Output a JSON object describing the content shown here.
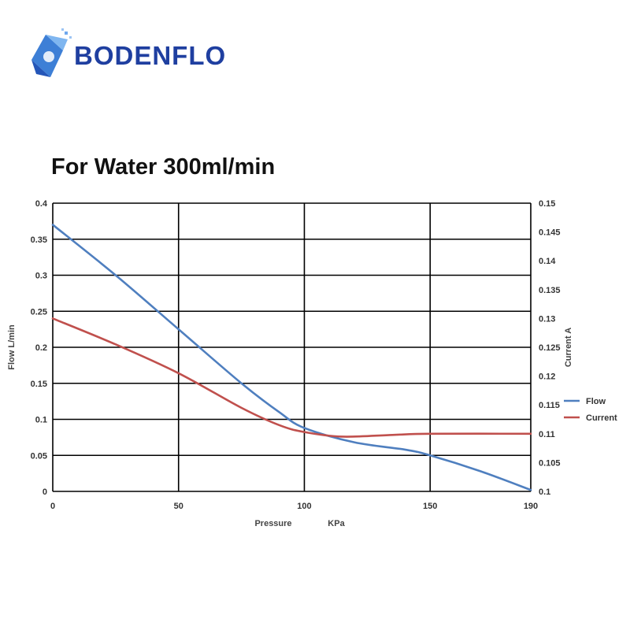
{
  "brand": {
    "logo_text": "BODENFLO"
  },
  "title": "For Water 300ml/min",
  "chart_data": {
    "type": "line",
    "x_ticks": [
      0,
      50,
      100,
      150,
      190
    ],
    "xlabel_left": "Pressure",
    "xlabel_right": "KPa",
    "ylabel": "Flow  L/min",
    "y2label": "Current  A",
    "ylim": [
      0,
      0.4
    ],
    "y_ticks": [
      "0",
      "0.05",
      "0.1",
      "0.15",
      "0.2",
      "0.25",
      "0.3",
      "0.35",
      "0.4"
    ],
    "y2lim": [
      0.1,
      0.15
    ],
    "y2_ticks": [
      "0.1",
      "0.105",
      "0.11",
      "0.115",
      "0.12",
      "0.125",
      "0.13",
      "0.135",
      "0.14",
      "0.145",
      "0.15"
    ],
    "grid": true,
    "legend_position": "right",
    "series": [
      {
        "name": "Flow",
        "axis": "left",
        "color": "#4f7fbf",
        "points": [
          [
            0,
            0.37
          ],
          [
            25,
            0.3
          ],
          [
            50,
            0.225
          ],
          [
            75,
            0.15
          ],
          [
            90,
            0.11
          ],
          [
            100,
            0.088
          ],
          [
            120,
            0.068
          ],
          [
            140,
            0.058
          ],
          [
            150,
            0.05
          ],
          [
            170,
            0.028
          ],
          [
            190,
            0.002
          ]
        ]
      },
      {
        "name": "Current",
        "axis": "right",
        "color": "#c0504d",
        "points": [
          [
            0,
            0.13
          ],
          [
            25,
            0.1255
          ],
          [
            50,
            0.1205
          ],
          [
            75,
            0.1145
          ],
          [
            90,
            0.1115
          ],
          [
            100,
            0.1103
          ],
          [
            115,
            0.1095
          ],
          [
            135,
            0.1098
          ],
          [
            150,
            0.11
          ],
          [
            190,
            0.11
          ]
        ]
      }
    ]
  }
}
